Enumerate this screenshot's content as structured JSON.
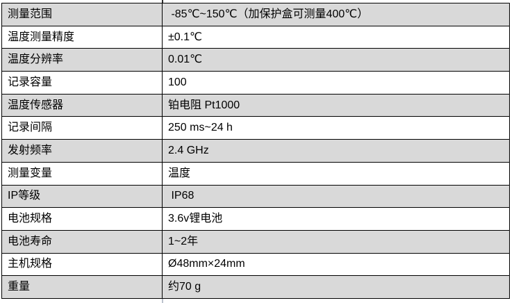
{
  "colors": {
    "row_shading": "#d9d9d9",
    "row_plain": "#ffffff",
    "table_border": "#000000",
    "page_background": "#ffffff",
    "cutoff_stub_top": "#2b2b2b",
    "cutoff_stub_bottom": "#bcc3cd"
  },
  "table": {
    "rows": [
      {
        "label": "测量范围",
        "value": " -85℃~150℃（加保护盒可测量400℃）"
      },
      {
        "label": "温度测量精度",
        "value": "±0.1℃"
      },
      {
        "label": "温度分辨率",
        "value": "0.01℃"
      },
      {
        "label": "记录容量",
        "value": "100"
      },
      {
        "label": "温度传感器",
        "value": "铂电阻 Pt1000"
      },
      {
        "label": "记录间隔",
        "value": "250 ms~24 h"
      },
      {
        "label": "发射频率",
        "value": "2.4 GHz"
      },
      {
        "label": "测量变量",
        "value": "温度"
      },
      {
        "label": "IP等级",
        "value": " IP68"
      },
      {
        "label": "电池规格",
        "value": "3.6v锂电池"
      },
      {
        "label": "电池寿命",
        "value": "1~2年"
      },
      {
        "label": "主机规格",
        "value": "Ø48mm×24mm"
      },
      {
        "label": "重量",
        "value": "约70 g"
      }
    ]
  }
}
